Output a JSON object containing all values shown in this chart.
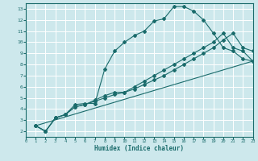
{
  "xlabel": "Humidex (Indice chaleur)",
  "bg_color": "#cde8ec",
  "grid_color": "#ffffff",
  "line_color": "#1a6b6b",
  "xlim": [
    0,
    23
  ],
  "ylim": [
    1.5,
    13.5
  ],
  "xticks": [
    0,
    1,
    2,
    3,
    4,
    5,
    6,
    7,
    8,
    9,
    10,
    11,
    12,
    13,
    14,
    15,
    16,
    17,
    18,
    19,
    20,
    21,
    22,
    23
  ],
  "yticks": [
    2,
    3,
    4,
    5,
    6,
    7,
    8,
    9,
    10,
    11,
    12,
    13
  ],
  "curve1_x": [
    1,
    2,
    3,
    4,
    5,
    6,
    7,
    8,
    9,
    10,
    11,
    12,
    13,
    14,
    15,
    16,
    17,
    18,
    19,
    20,
    21,
    22,
    23
  ],
  "curve1_y": [
    2.5,
    2.0,
    3.2,
    3.5,
    4.4,
    4.5,
    4.5,
    7.6,
    9.2,
    10.0,
    10.6,
    11.0,
    11.9,
    12.1,
    13.2,
    13.2,
    12.8,
    12.0,
    10.8,
    9.5,
    9.2,
    8.5,
    8.3
  ],
  "curve2_x": [
    1,
    2,
    3,
    4,
    5,
    6,
    7,
    8,
    9,
    10,
    11,
    12,
    13,
    14,
    15,
    16,
    17,
    18,
    19,
    20,
    21,
    22,
    23
  ],
  "curve2_y": [
    2.5,
    2.0,
    3.2,
    3.5,
    4.2,
    4.4,
    4.8,
    5.2,
    5.5,
    5.5,
    6.0,
    6.5,
    7.0,
    7.5,
    8.0,
    8.5,
    9.0,
    9.5,
    10.0,
    10.8,
    9.5,
    9.2,
    8.3
  ],
  "curve3_x": [
    1,
    2,
    3,
    4,
    5,
    6,
    7,
    8,
    9,
    10,
    11,
    12,
    13,
    14,
    15,
    16,
    17,
    18,
    19,
    20,
    21,
    22,
    23
  ],
  "curve3_y": [
    2.5,
    2.0,
    3.2,
    3.5,
    4.2,
    4.4,
    4.7,
    5.0,
    5.3,
    5.5,
    5.8,
    6.2,
    6.6,
    7.0,
    7.5,
    8.0,
    8.5,
    9.0,
    9.5,
    10.2,
    10.8,
    9.5,
    9.2
  ],
  "curve4_x": [
    1,
    23
  ],
  "curve4_y": [
    2.5,
    8.3
  ]
}
